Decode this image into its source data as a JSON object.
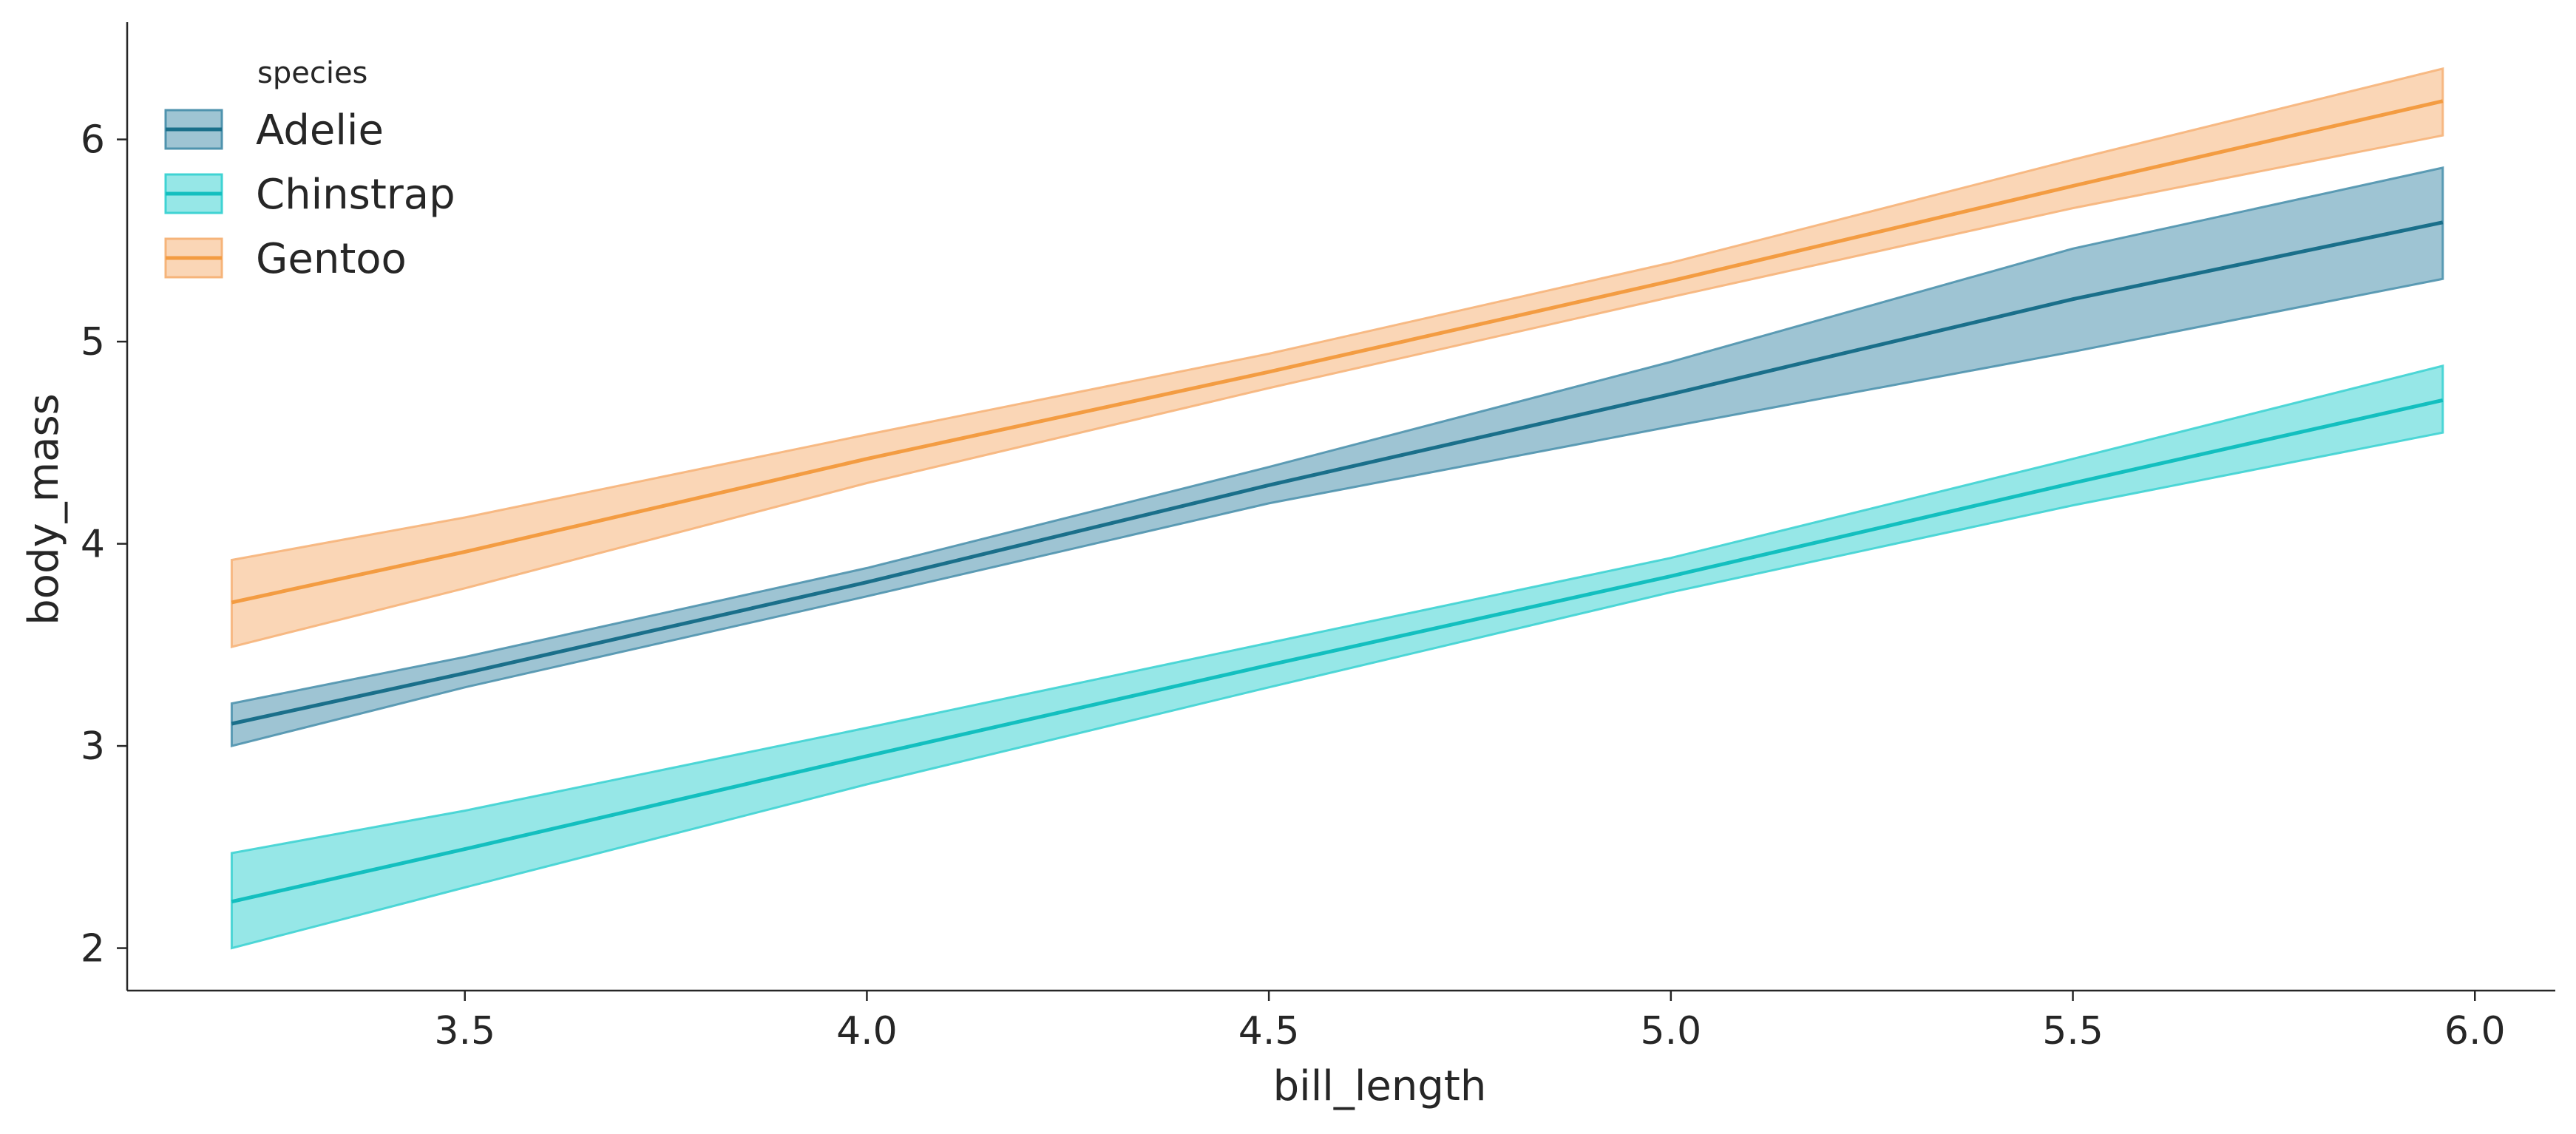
{
  "chart_data": {
    "type": "line",
    "xlabel": "bill_length",
    "ylabel": "body_mass",
    "xlim": [
      3.08,
      6.1
    ],
    "ylim": [
      1.79,
      6.58
    ],
    "x_ticks": [
      3.5,
      4.0,
      4.5,
      5.0,
      5.5,
      6.0
    ],
    "x_tick_labels": [
      "3.5",
      "4.0",
      "4.5",
      "5.0",
      "5.5",
      "6.0"
    ],
    "y_ticks": [
      2,
      3,
      4,
      5,
      6
    ],
    "y_tick_labels": [
      "2",
      "3",
      "4",
      "5",
      "6"
    ],
    "grid": false,
    "legend": {
      "title": "species",
      "placement": "top-left"
    },
    "series": [
      {
        "name": "Adelie",
        "color": "#1a6f8a",
        "band_color": "#4f93ae",
        "x": [
          3.21,
          3.5,
          4.0,
          4.5,
          5.0,
          5.5,
          5.96
        ],
        "values": [
          3.11,
          3.36,
          3.81,
          4.29,
          4.74,
          5.21,
          5.59
        ],
        "lower": [
          3.0,
          3.29,
          3.74,
          4.2,
          4.58,
          4.95,
          5.31
        ],
        "upper": [
          3.21,
          3.44,
          3.88,
          4.38,
          4.9,
          5.46,
          5.86
        ]
      },
      {
        "name": "Chinstrap",
        "color": "#13bfbf",
        "band_color": "#3fd3d3",
        "x": [
          3.21,
          3.5,
          4.0,
          4.5,
          5.0,
          5.5,
          5.96
        ],
        "values": [
          2.23,
          2.49,
          2.95,
          3.4,
          3.84,
          4.3,
          4.71
        ],
        "lower": [
          2.0,
          2.3,
          2.81,
          3.29,
          3.76,
          4.19,
          4.55
        ],
        "upper": [
          2.47,
          2.68,
          3.09,
          3.51,
          3.93,
          4.42,
          4.88
        ]
      },
      {
        "name": "Gentoo",
        "color": "#f39c42",
        "band_color": "#f6b47a",
        "x": [
          3.21,
          3.5,
          4.0,
          4.5,
          5.0,
          5.5,
          5.96
        ],
        "values": [
          3.71,
          3.96,
          4.42,
          4.85,
          5.3,
          5.77,
          6.19
        ],
        "lower": [
          3.49,
          3.78,
          4.3,
          4.77,
          5.22,
          5.66,
          6.02
        ],
        "upper": [
          3.92,
          4.13,
          4.54,
          4.94,
          5.39,
          5.9,
          6.35
        ]
      }
    ]
  }
}
